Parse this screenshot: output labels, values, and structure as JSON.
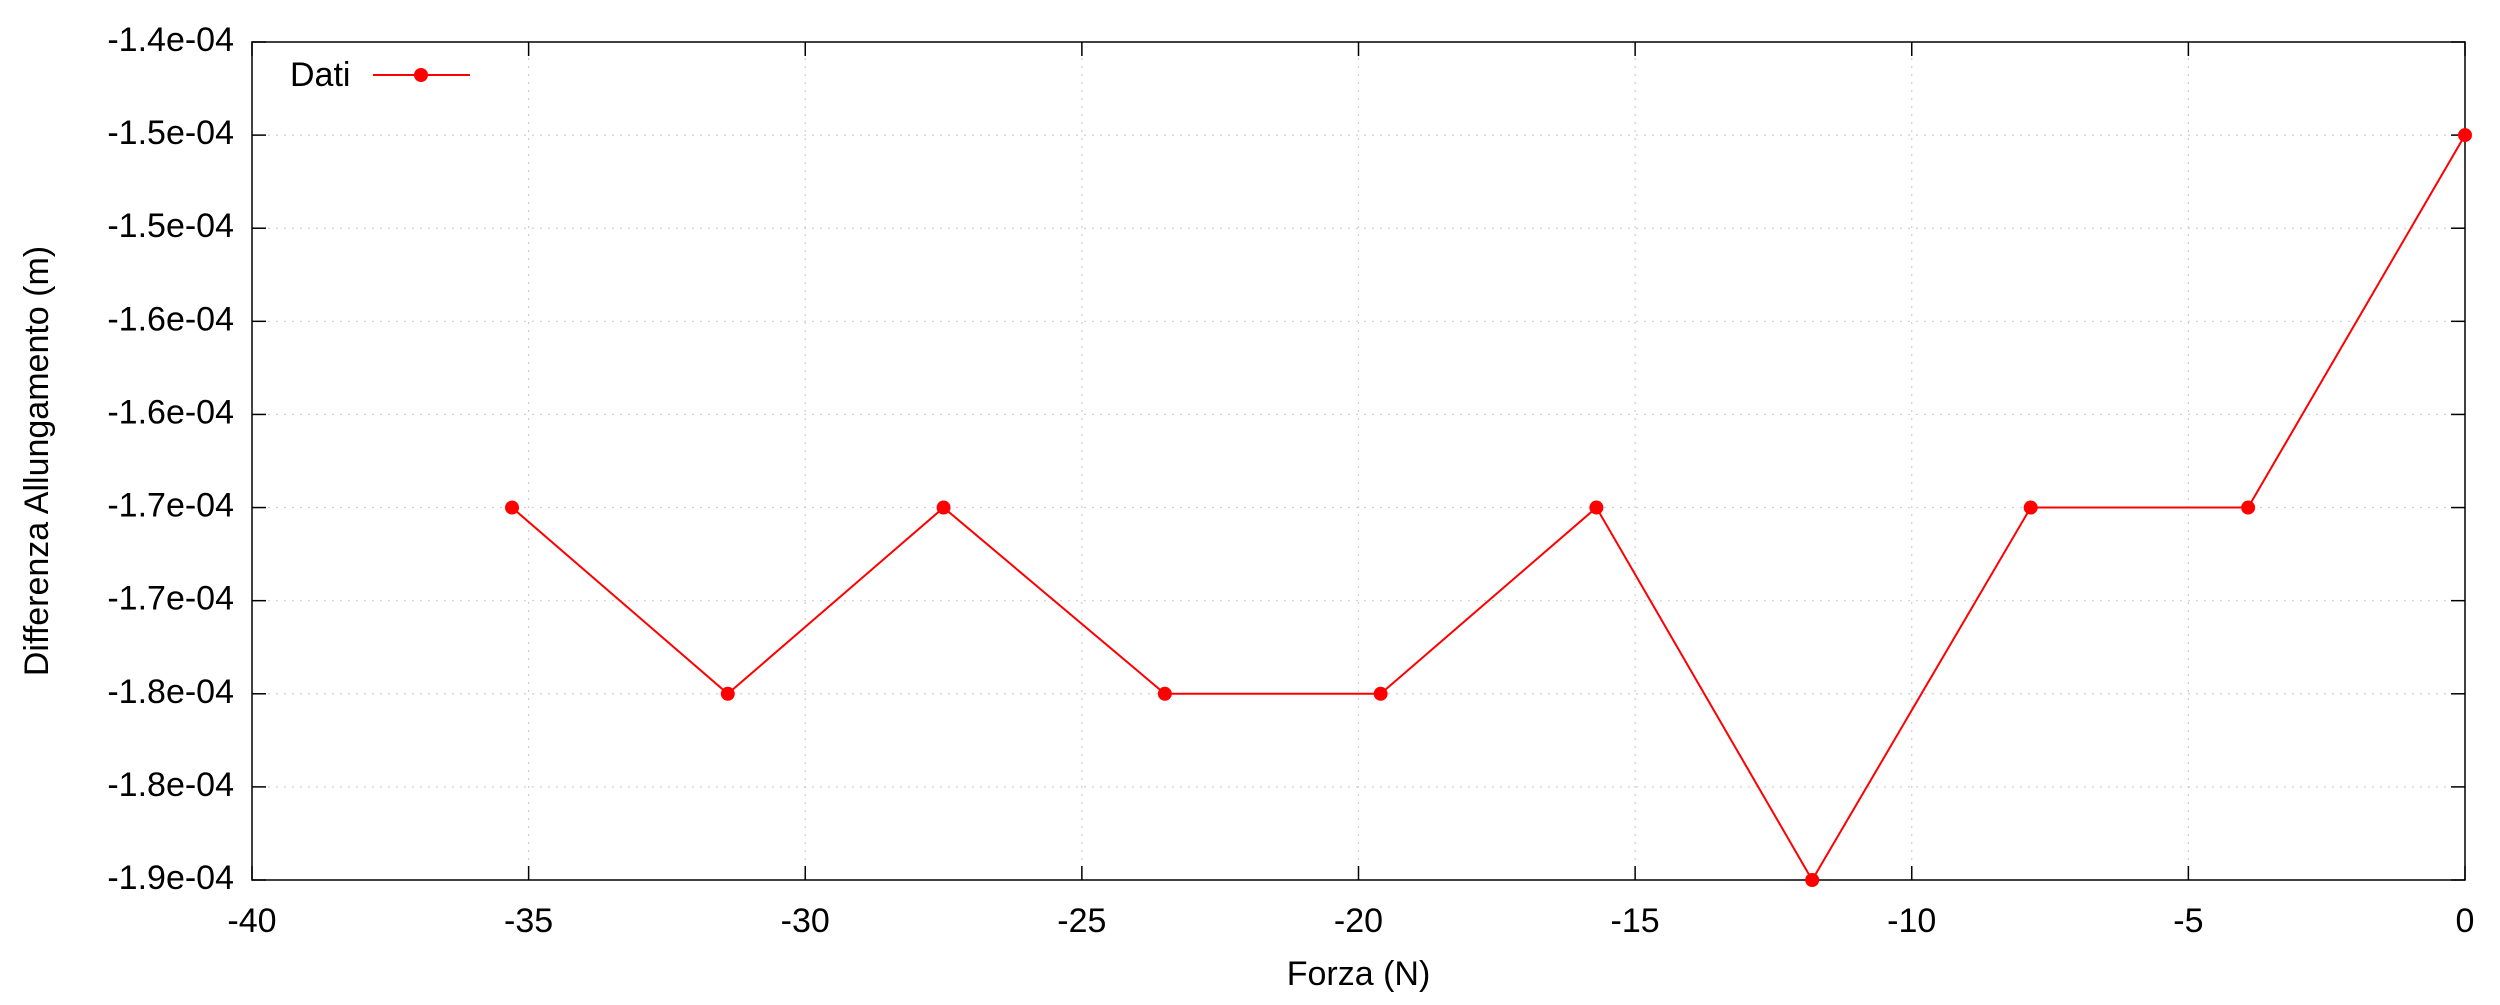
{
  "chart_data": {
    "type": "line",
    "title": "",
    "xlabel": "Forza (N)",
    "ylabel": "Differenza Allungamento (m)",
    "xlim": [
      -40,
      0
    ],
    "ylim": [
      -0.00019,
      -0.000145
    ],
    "xticks": [
      {
        "value": -40,
        "label": "-40"
      },
      {
        "value": -35,
        "label": "-35"
      },
      {
        "value": -30,
        "label": "-30"
      },
      {
        "value": -25,
        "label": "-25"
      },
      {
        "value": -20,
        "label": "-20"
      },
      {
        "value": -15,
        "label": "-15"
      },
      {
        "value": -10,
        "label": "-10"
      },
      {
        "value": -5,
        "label": "-5"
      },
      {
        "value": 0,
        "label": "0"
      }
    ],
    "yticks": [
      {
        "value": -0.000145,
        "label": "-1.4e-04"
      },
      {
        "value": -0.00015,
        "label": "-1.5e-04"
      },
      {
        "value": -0.000155,
        "label": "-1.5e-04"
      },
      {
        "value": -0.00016,
        "label": "-1.6e-04"
      },
      {
        "value": -0.000165,
        "label": "-1.6e-04"
      },
      {
        "value": -0.00017,
        "label": "-1.7e-04"
      },
      {
        "value": -0.000175,
        "label": "-1.7e-04"
      },
      {
        "value": -0.00018,
        "label": "-1.8e-04"
      },
      {
        "value": -0.000185,
        "label": "-1.8e-04"
      },
      {
        "value": -0.00019,
        "label": "-1.9e-04"
      }
    ],
    "grid": true,
    "legend_position": "top-left",
    "series": [
      {
        "name": "Dati",
        "color": "#ff0000",
        "x": [
          -35.3,
          -31.4,
          -27.5,
          -23.5,
          -19.6,
          -15.7,
          -11.8,
          -7.85,
          -3.92,
          0
        ],
        "y": [
          -0.00017,
          -0.00018,
          -0.00017,
          -0.00018,
          -0.00018,
          -0.00017,
          -0.00019,
          -0.00017,
          -0.00017,
          -0.00015
        ]
      }
    ]
  }
}
